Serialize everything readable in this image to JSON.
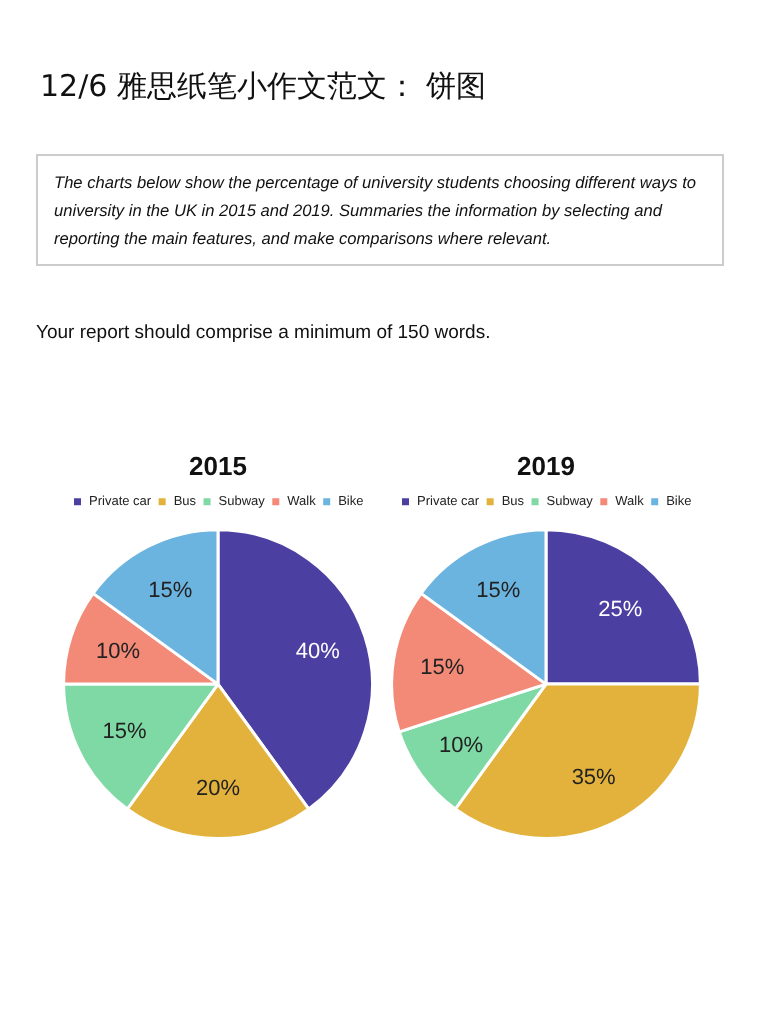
{
  "chart_data": [
    {
      "type": "pie",
      "title": "2015",
      "annotations": [
        "12/6 雅思纸笔小作文范文：  饼图",
        "The charts below show the percentage of university students choosing different ways to university in the UK in 2015 and 2019. Summaries the information by selecting and reporting the main features, and make comparisons where relevant.",
        "Your report should comprise a minimum of 150 words."
      ],
      "categories": [
        "Private car",
        "Bus",
        "Subway",
        "Walk",
        "Bike"
      ],
      "values": [
        40,
        20,
        15,
        10,
        15
      ],
      "value_labels": [
        "40%",
        "20%",
        "15%",
        "10%",
        "15%"
      ],
      "colors": [
        "#4b3fa2",
        "#e3b23c",
        "#7fd9a5",
        "#f38a77",
        "#6cb4e0"
      ],
      "legend": "top"
    },
    {
      "type": "pie",
      "title": "2019",
      "categories": [
        "Private car",
        "Bus",
        "Subway",
        "Walk",
        "Bike"
      ],
      "values": [
        25,
        35,
        10,
        15,
        15
      ],
      "value_labels": [
        "25%",
        "35%",
        "10%",
        "15%",
        "15%"
      ],
      "colors": [
        "#4b3fa2",
        "#e3b23c",
        "#7fd9a5",
        "#f38a77",
        "#6cb4e0"
      ],
      "legend": "top"
    }
  ]
}
